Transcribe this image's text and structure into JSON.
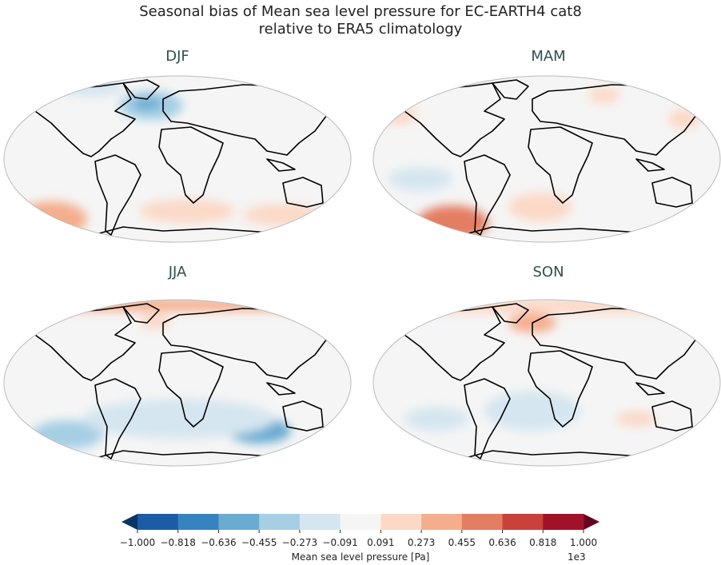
{
  "title_line1": "Seasonal bias of Mean sea level pressure for EC-EARTH4 cat8",
  "title_line2": "relative to ERA5 climatology",
  "panels": [
    {
      "title": "DJF"
    },
    {
      "title": "MAM"
    },
    {
      "title": "JJA"
    },
    {
      "title": "SON"
    }
  ],
  "colorbar": {
    "label": "Mean sea level pressure [Pa]",
    "scale": "1e3",
    "ticks": [
      "−1.000",
      "−0.818",
      "−0.636",
      "−0.455",
      "−0.273",
      "−0.091",
      "0.091",
      "0.273",
      "0.455",
      "0.636",
      "0.818",
      "1.000"
    ],
    "colors": [
      "#1c5ba6",
      "#3783bf",
      "#6aacd1",
      "#a6cfe4",
      "#d5e6f0",
      "#f5f5f5",
      "#fcd9c7",
      "#f5ae8d",
      "#e47e62",
      "#c8413a",
      "#a11228"
    ],
    "extend_low": "#0a3466",
    "extend_high": "#67001f"
  }
}
